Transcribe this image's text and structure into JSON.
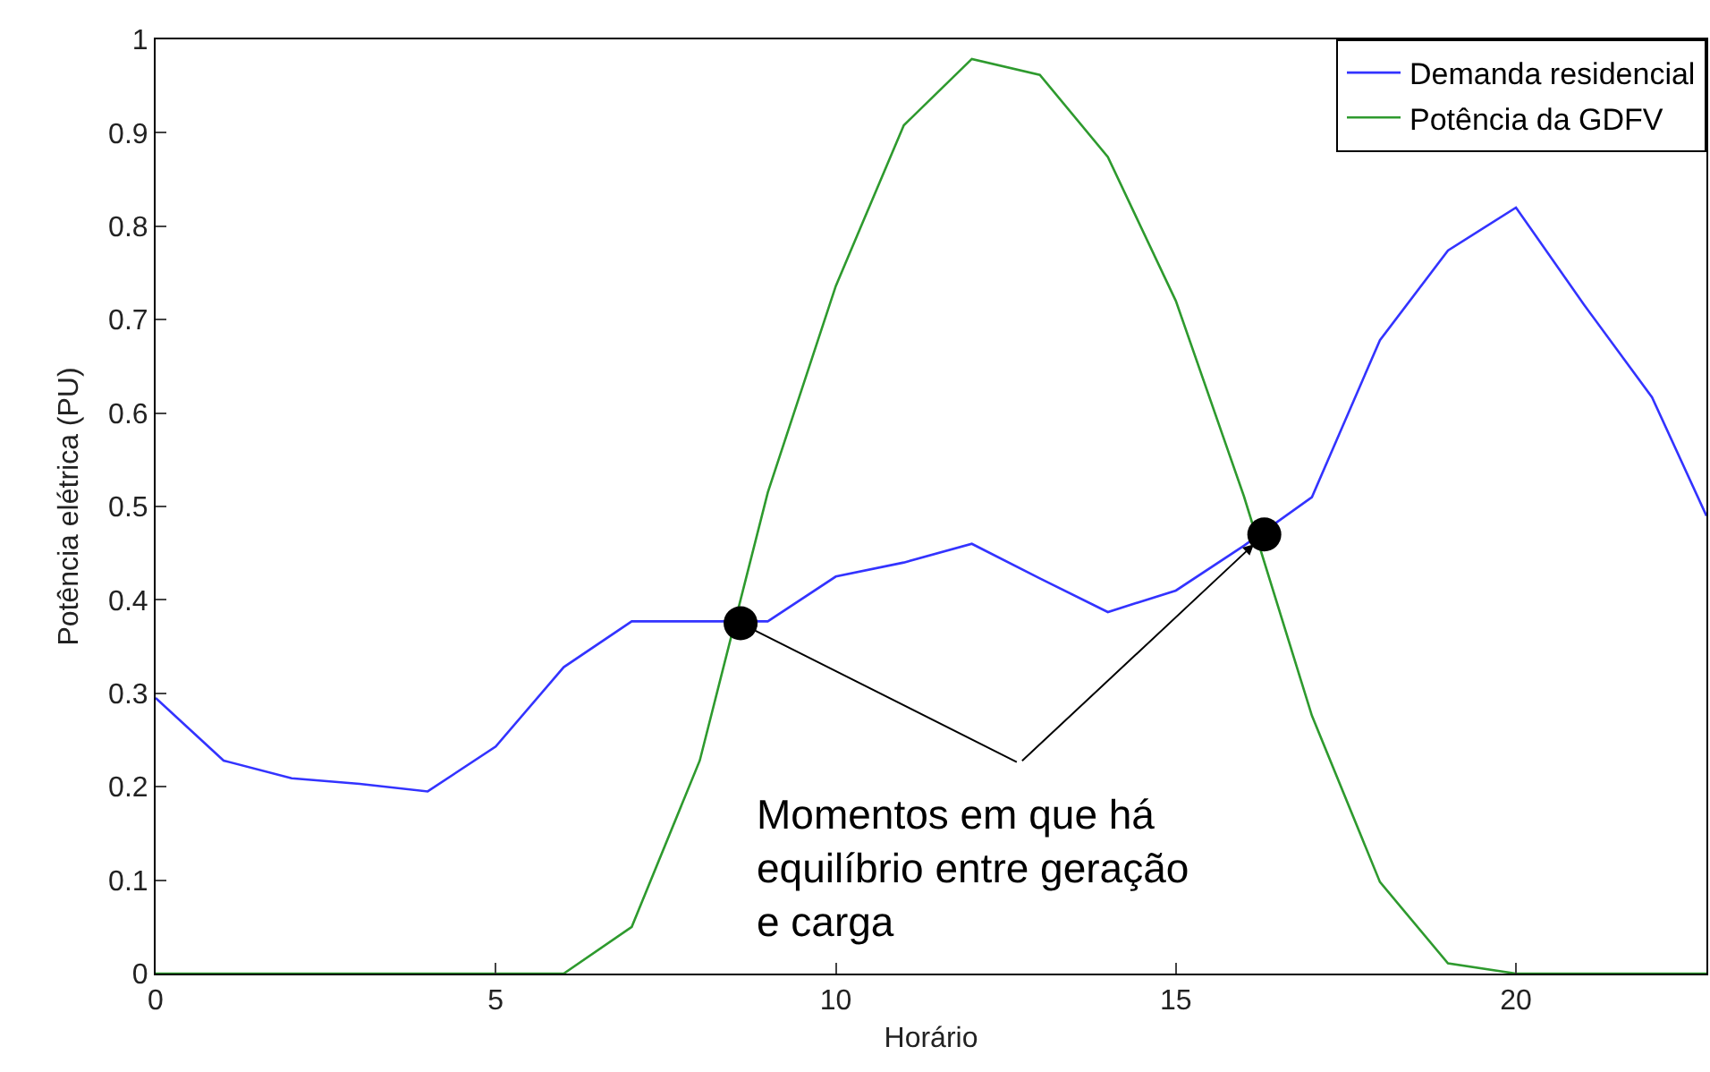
{
  "chart_data": {
    "type": "line",
    "xlabel": "Horário",
    "ylabel": "Potência elétrica (PU)",
    "xlim": [
      0,
      22.8
    ],
    "xticks": [
      0,
      5,
      10,
      15,
      20
    ],
    "ylim": [
      0,
      1
    ],
    "yticks": [
      0,
      0.1,
      0.2,
      0.3,
      0.4,
      0.5,
      0.6,
      0.7,
      0.8,
      0.9,
      1
    ],
    "grid": false,
    "legend": "top right",
    "marker": "none",
    "line_style": "solid",
    "series": [
      {
        "name": "Demanda residencial",
        "color": "#3333ff",
        "x": [
          0,
          1,
          2,
          3,
          4,
          5,
          6,
          7,
          8,
          9,
          10,
          11,
          12,
          13,
          14,
          15,
          16,
          17,
          18,
          19,
          20,
          21,
          22,
          22.8
        ],
        "values": [
          0.295,
          0.228,
          0.209,
          0.203,
          0.195,
          0.243,
          0.328,
          0.377,
          0.377,
          0.377,
          0.425,
          0.44,
          0.46,
          0.423,
          0.387,
          0.41,
          0.458,
          0.51,
          0.678,
          0.774,
          0.82,
          0.716,
          0.617,
          0.49
        ]
      },
      {
        "name": "Potência da GDFV",
        "color": "#2e9a2e",
        "x": [
          0,
          1,
          2,
          3,
          4,
          5,
          5.6,
          6,
          7,
          8,
          9,
          10,
          11,
          12,
          13,
          14,
          15,
          16,
          17,
          18,
          19,
          20,
          21,
          22,
          22.8
        ],
        "values": [
          0,
          0,
          0,
          0,
          0,
          0,
          0,
          0,
          0.05,
          0.228,
          0.515,
          0.736,
          0.908,
          0.979,
          0.962,
          0.874,
          0.72,
          0.511,
          0.276,
          0.098,
          0.011,
          0,
          0,
          0,
          0
        ]
      },
      {
        "type": "scatter",
        "color": "#000000",
        "marker": "circle",
        "x": [
          8.6,
          16.3
        ],
        "values": [
          0.375,
          0.47
        ]
      }
    ],
    "annotations": [
      {
        "text": "Momentos em que há\nequilíbrio entre geração\ne carga",
        "x": 8.6,
        "y": 0.375
      }
    ]
  }
}
